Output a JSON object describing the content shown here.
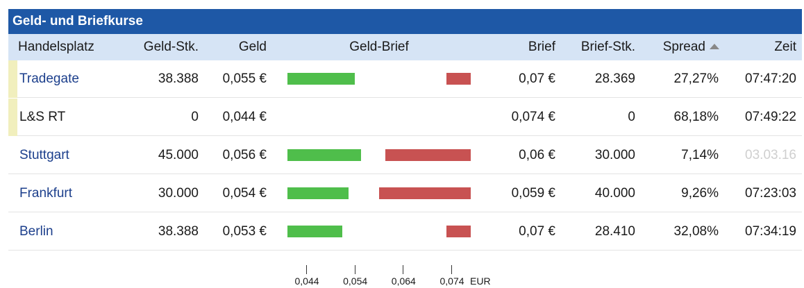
{
  "title": "Geld- und Briefkurse",
  "columns": {
    "handelsplatz": "Handelsplatz",
    "geld_stk": "Geld-Stk.",
    "geld": "Geld",
    "geld_brief": "Geld-Brief",
    "brief": "Brief",
    "brief_stk": "Brief-Stk.",
    "spread": "Spread",
    "zeit": "Zeit"
  },
  "sort": {
    "column": "spread",
    "direction": "ascending",
    "icon": "sort-up-icon"
  },
  "scale": {
    "min": 0.044,
    "max": 0.074,
    "ticks": [
      "0,044",
      "0,054",
      "0,064",
      "0,074"
    ],
    "unit": "EUR"
  },
  "colors": {
    "header_bg": "#1e58a6",
    "column_header_bg": "#d6e4f5",
    "bid_bar": "#4fbe4b",
    "ask_bar": "#c85252",
    "highlight_marker": "#f1efbd",
    "link": "#1c3f8c"
  },
  "rows": [
    {
      "name": "Tradegate",
      "link": true,
      "highlight": true,
      "geld_stk": "38.388",
      "geld": "0,055 €",
      "brief": "0,07 €",
      "brief_stk": "28.369",
      "spread": "27,27%",
      "zeit": "07:47:20",
      "zeit_dim": false,
      "bid": 0.055,
      "ask": 0.07
    },
    {
      "name": "L&S RT",
      "link": false,
      "highlight": true,
      "geld_stk": "0",
      "geld": "0,044 €",
      "brief": "0,074 €",
      "brief_stk": "0",
      "spread": "68,18%",
      "zeit": "07:49:22",
      "zeit_dim": false,
      "bid": 0.044,
      "ask": 0.074
    },
    {
      "name": "Stuttgart",
      "link": true,
      "highlight": false,
      "geld_stk": "45.000",
      "geld": "0,056 €",
      "brief": "0,06 €",
      "brief_stk": "30.000",
      "spread": "7,14%",
      "zeit": "03.03.16",
      "zeit_dim": true,
      "bid": 0.056,
      "ask": 0.06
    },
    {
      "name": "Frankfurt",
      "link": true,
      "highlight": false,
      "geld_stk": "30.000",
      "geld": "0,054 €",
      "brief": "0,059 €",
      "brief_stk": "40.000",
      "spread": "9,26%",
      "zeit": "07:23:03",
      "zeit_dim": false,
      "bid": 0.054,
      "ask": 0.059
    },
    {
      "name": "Berlin",
      "link": true,
      "highlight": false,
      "geld_stk": "38.388",
      "geld": "0,053 €",
      "brief": "0,07 €",
      "brief_stk": "28.410",
      "spread": "32,08%",
      "zeit": "07:34:19",
      "zeit_dim": false,
      "bid": 0.053,
      "ask": 0.07
    }
  ]
}
